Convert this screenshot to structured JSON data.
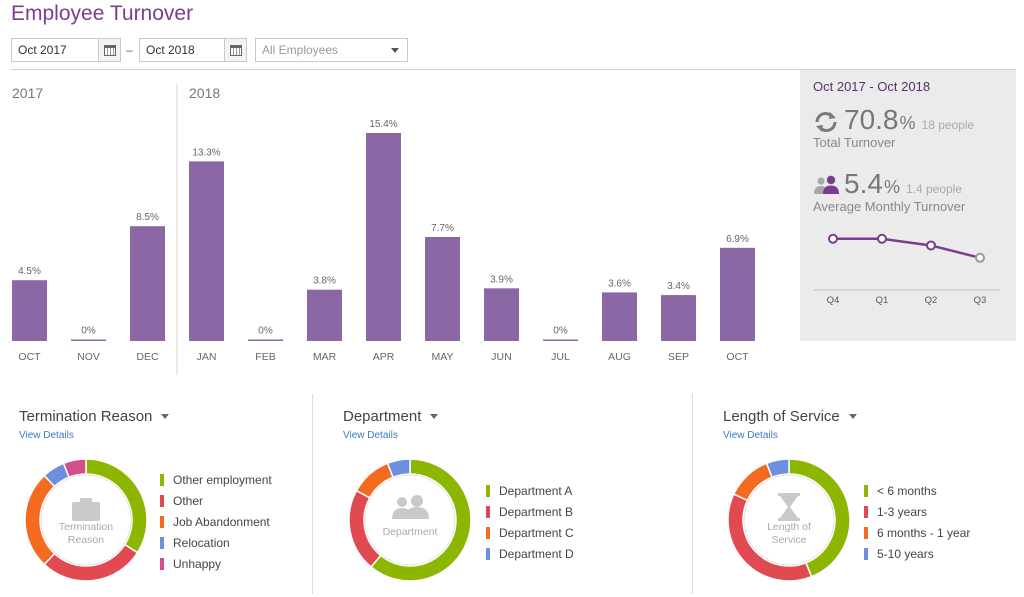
{
  "page": {
    "title": "Employee Turnover"
  },
  "filters": {
    "start_date": "Oct 2017",
    "separator": "–",
    "end_date": "Oct 2018",
    "employees_placeholder": "All Employees"
  },
  "colors": {
    "bar": "#8b67a6",
    "title": "#7a3e8f",
    "green": "#8db600",
    "red": "#e24a52",
    "orange": "#f46a1f",
    "blue": "#6c8fe0",
    "pink": "#d24f8c",
    "link": "#3a7bbf"
  },
  "chart_data": {
    "type": "bar",
    "title": "",
    "year_labels": [
      {
        "label": "2017",
        "start_index": 0
      },
      {
        "label": "2018",
        "start_index": 3
      }
    ],
    "categories": [
      "OCT",
      "NOV",
      "DEC",
      "JAN",
      "FEB",
      "MAR",
      "APR",
      "MAY",
      "JUN",
      "JUL",
      "AUG",
      "SEP",
      "OCT"
    ],
    "values": [
      4.5,
      0,
      8.5,
      13.3,
      0,
      3.8,
      15.4,
      7.7,
      3.9,
      0,
      3.6,
      3.4,
      6.9
    ],
    "value_labels": [
      "4.5%",
      "0%",
      "8.5%",
      "13.3%",
      "0%",
      "3.8%",
      "15.4%",
      "7.7%",
      "3.9%",
      "0%",
      "3.6%",
      "3.4%",
      "6.9%"
    ],
    "xlabel": "",
    "ylabel": "",
    "ylim": [
      0,
      15.4
    ],
    "grid": false,
    "legend": "none"
  },
  "summary": {
    "range": "Oct 2017 - Oct 2018",
    "total": {
      "value": "70.8",
      "unit": "%",
      "people": "18 people",
      "label": "Total Turnover",
      "icon": "refresh-icon"
    },
    "monthly": {
      "value": "5.4",
      "unit": "%",
      "people": "1.4 people",
      "label": "Average Monthly Turnover",
      "icon": "people-icon"
    },
    "sparkline": {
      "type": "line",
      "categories": [
        "Q4",
        "Q1",
        "Q2",
        "Q3"
      ],
      "values": [
        5.6,
        5.6,
        4.9,
        3.6
      ],
      "ylim": [
        0,
        8
      ]
    }
  },
  "panels": [
    {
      "title": "Termination Reason",
      "link": "View Details",
      "center_label": [
        "Termination",
        "Reason"
      ],
      "center_icon": "briefcase-icon",
      "legend": [
        {
          "label": "Other employment",
          "color": "#8db600"
        },
        {
          "label": "Other",
          "color": "#e24a52"
        },
        {
          "label": "Job Abandonment",
          "color": "#f46a1f"
        },
        {
          "label": "Relocation",
          "color": "#6c8fe0"
        },
        {
          "label": "Unhappy",
          "color": "#d24f8c"
        }
      ],
      "donut": {
        "type": "pie",
        "values": [
          34,
          28,
          26,
          6,
          6
        ]
      }
    },
    {
      "title": "Department",
      "link": "View Details",
      "center_label": [
        "Department"
      ],
      "center_icon": "people-icon",
      "legend": [
        {
          "label": "Department A",
          "color": "#8db600"
        },
        {
          "label": "Department B",
          "color": "#e24a52"
        },
        {
          "label": "Department C",
          "color": "#f46a1f"
        },
        {
          "label": "Department D",
          "color": "#6c8fe0"
        }
      ],
      "donut": {
        "type": "pie",
        "values": [
          61,
          22,
          11,
          6
        ]
      }
    },
    {
      "title": "Length of Service",
      "link": "View Details",
      "center_label": [
        "Length of",
        "Service"
      ],
      "center_icon": "hourglass-icon",
      "legend": [
        {
          "label": "< 6 months",
          "color": "#8db600"
        },
        {
          "label": "1-3 years",
          "color": "#e24a52"
        },
        {
          "label": "6 months - 1 year",
          "color": "#f46a1f"
        },
        {
          "label": "5-10 years",
          "color": "#6c8fe0"
        }
      ],
      "donut": {
        "type": "pie",
        "values": [
          44,
          38,
          12,
          6
        ]
      }
    }
  ]
}
